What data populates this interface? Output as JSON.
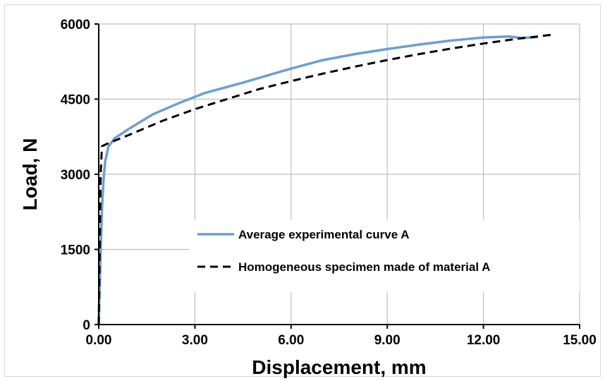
{
  "chart_data": {
    "type": "line",
    "title": "",
    "xlabel": "Displacement, mm",
    "ylabel": "Load, N",
    "xlim": [
      0,
      15
    ],
    "ylim": [
      0,
      6000
    ],
    "x_ticks": [
      0,
      3,
      6,
      9,
      12,
      15
    ],
    "x_tick_labels": [
      "0.00",
      "3.00",
      "6.00",
      "9.00",
      "12.00",
      "15.00"
    ],
    "y_ticks": [
      0,
      1500,
      3000,
      4500,
      6000
    ],
    "y_tick_labels": [
      "0",
      "1500",
      "3000",
      "4500",
      "6000"
    ],
    "grid": true,
    "legend_position": "lower-right",
    "series": [
      {
        "name": "Average experimental curve A",
        "color": "#6a9fd4",
        "line_style": "solid",
        "x": [
          0.0,
          0.05,
          0.1,
          0.15,
          0.2,
          0.3,
          0.5,
          1.0,
          1.7,
          2.5,
          3.3,
          4.5,
          6.0,
          7.0,
          8.0,
          9.0,
          10.0,
          11.0,
          12.0,
          12.8,
          13.2,
          13.7
        ],
        "y": [
          0,
          1200,
          2300,
          2900,
          3250,
          3550,
          3720,
          3930,
          4200,
          4420,
          4620,
          4830,
          5110,
          5280,
          5400,
          5500,
          5590,
          5670,
          5730,
          5750,
          5720,
          5740
        ]
      },
      {
        "name": "Homogeneous specimen made of material A",
        "color": "#000000",
        "line_style": "dashed",
        "x": [
          0.0,
          0.03,
          0.06,
          0.1,
          0.3,
          1.0,
          2.0,
          3.0,
          4.0,
          5.0,
          6.0,
          7.0,
          8.0,
          9.0,
          10.0,
          11.0,
          12.0,
          13.0,
          14.2
        ],
        "y": [
          0,
          1500,
          3000,
          3560,
          3620,
          3800,
          4070,
          4300,
          4500,
          4700,
          4860,
          5010,
          5150,
          5280,
          5400,
          5510,
          5610,
          5700,
          5790
        ]
      }
    ]
  }
}
